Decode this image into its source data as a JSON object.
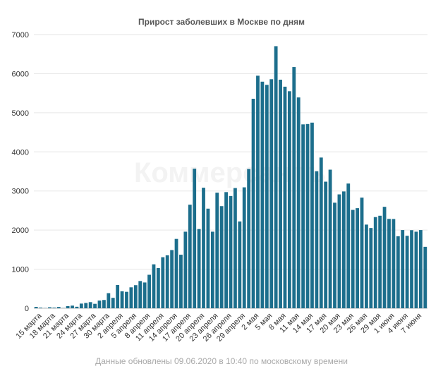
{
  "chart_data": {
    "type": "bar",
    "title": "Прирост заболевших в Москве по дням",
    "footnote": "Данные обновлены 09.06.2020 в 10:40 по московскому времени",
    "watermark": "Коммерсантъ",
    "bar_color": "#1c6e8c",
    "ylim": [
      0,
      7000
    ],
    "yticks": [
      0,
      1000,
      2000,
      3000,
      4000,
      5000,
      6000,
      7000
    ],
    "grid": true,
    "x_tick_labels": [
      "15 марта",
      "18 марта",
      "21 марта",
      "24 марта",
      "27 марта",
      "30 марта",
      "2 апреля",
      "5 апреля",
      "8 апреля",
      "11 апреля",
      "14 апреля",
      "17 апреля",
      "20 апреля",
      "23 апреля",
      "26 апреля",
      "29 апреля",
      "2 мая",
      "5 мая",
      "8 мая",
      "11 мая",
      "14 мая",
      "17 мая",
      "20 мая",
      "23 мая",
      "26 мая",
      "29 мая",
      "1 июня",
      "4 июня",
      "7 июня"
    ],
    "values": [
      35,
      17,
      5,
      26,
      17,
      33,
      5,
      55,
      68,
      39,
      120,
      136,
      157,
      114,
      197,
      212,
      387,
      267,
      595,
      434,
      421,
      536,
      591,
      697,
      660,
      857,
      1124,
      1030,
      1306,
      1355,
      1489,
      1774,
      1370,
      1959,
      2649,
      3570,
      2026,
      3083,
      2548,
      1959,
      2957,
      2612,
      2971,
      2871,
      3075,
      2220,
      3093,
      3561,
      5358,
      5948,
      5795,
      5714,
      5858,
      6703,
      5846,
      5667,
      5551,
      6169,
      5392,
      4703,
      4712,
      4748,
      3505,
      3855,
      3238,
      3545,
      2700,
      2913,
      2988,
      3190,
      2516,
      2560,
      2830,
      2140,
      2054,
      2332,
      2367,
      2595,
      2286,
      2283,
      1842,
      2001,
      1854,
      1998,
      1959,
      2001,
      1572
    ]
  }
}
